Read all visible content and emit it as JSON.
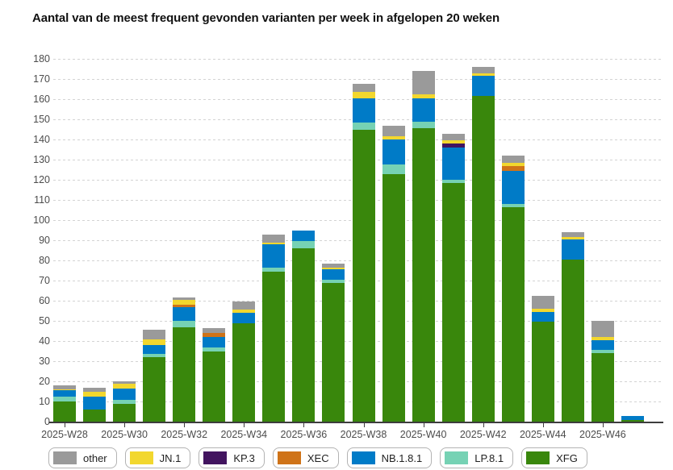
{
  "title": "Aantal van de meest frequent gevonden varianten per week in afgelopen 20 weken",
  "chart_data": {
    "type": "bar",
    "stacked": true,
    "title": "Aantal van de meest frequent gevonden varianten per week in afgelopen 20 weken",
    "xlabel": "",
    "ylabel": "",
    "ylim": [
      0,
      180
    ],
    "ytick_step": 10,
    "grid": "horizontal-dashed",
    "x_label_every": 2,
    "legend_position": "bottom",
    "legend_order": [
      "other",
      "JN.1",
      "KP.3",
      "XEC",
      "NB.1.8.1",
      "LP.8.1",
      "XFG"
    ],
    "categories": [
      "2025-W28",
      "2025-W29",
      "2025-W30",
      "2025-W31",
      "2025-W32",
      "2025-W33",
      "2025-W34",
      "2025-W35",
      "2025-W36",
      "2025-W37",
      "2025-W38",
      "2025-W39",
      "2025-W40",
      "2025-W41",
      "2025-W42",
      "2025-W43",
      "2025-W44",
      "2025-W45",
      "2025-W46",
      "2025-W47"
    ],
    "x_tick_labels": [
      "2025-W28",
      "2025-W30",
      "2025-W32",
      "2025-W34",
      "2025-W36",
      "2025-W38",
      "2025-W40",
      "2025-W42",
      "2025-W44",
      "2025-W46"
    ],
    "series": [
      {
        "name": "XFG",
        "color": "#39870c",
        "values": [
          10,
          6,
          9,
          32,
          47,
          35,
          49,
          74.5,
          86,
          69,
          145,
          123,
          145.5,
          118.5,
          161.5,
          106.5,
          49.5,
          80.5,
          34,
          1
        ]
      },
      {
        "name": "LP.8.1",
        "color": "#76d2b4",
        "values": [
          2.5,
          0,
          2,
          1.5,
          3,
          2,
          0,
          2,
          3.5,
          1.5,
          3.5,
          4.5,
          3.5,
          1.5,
          0,
          1.5,
          0,
          0,
          1.5,
          0
        ]
      },
      {
        "name": "NB.1.8.1",
        "color": "#007bc7",
        "values": [
          3,
          6.5,
          5.5,
          4.5,
          7,
          5,
          5,
          11.5,
          5.5,
          5,
          12,
          12.5,
          11.5,
          16,
          10,
          16.5,
          5,
          10,
          5,
          2
        ]
      },
      {
        "name": "XEC",
        "color": "#cf7318",
        "values": [
          0,
          0,
          0,
          0,
          1,
          2,
          0,
          0,
          0,
          0,
          0,
          0,
          0,
          0,
          0,
          2.5,
          0,
          0,
          0,
          0
        ]
      },
      {
        "name": "KP.3",
        "color": "#42145f",
        "values": [
          0,
          0,
          0,
          0,
          0,
          0,
          0,
          0,
          0,
          0,
          0,
          0,
          0,
          2,
          0,
          0,
          0,
          0,
          0,
          0
        ]
      },
      {
        "name": "JN.1",
        "color": "#f2d72e",
        "values": [
          0.5,
          2.5,
          2.5,
          3,
          2.5,
          0,
          1.5,
          1,
          0,
          1,
          3,
          1.5,
          2,
          1.5,
          1.5,
          1.5,
          1.5,
          1,
          1.5,
          0
        ]
      },
      {
        "name": "other",
        "color": "#9a9a9a",
        "values": [
          2,
          2,
          1,
          4.5,
          1,
          2.3,
          4,
          4,
          0,
          2,
          4,
          5.5,
          11.5,
          3.5,
          3,
          3.5,
          6.5,
          2.5,
          8,
          0
        ]
      }
    ]
  },
  "legend": {
    "items": [
      {
        "label": "other"
      },
      {
        "label": "JN.1"
      },
      {
        "label": "KP.3"
      },
      {
        "label": "XEC"
      },
      {
        "label": "NB.1.8.1"
      },
      {
        "label": "LP.8.1"
      },
      {
        "label": "XFG"
      }
    ]
  }
}
